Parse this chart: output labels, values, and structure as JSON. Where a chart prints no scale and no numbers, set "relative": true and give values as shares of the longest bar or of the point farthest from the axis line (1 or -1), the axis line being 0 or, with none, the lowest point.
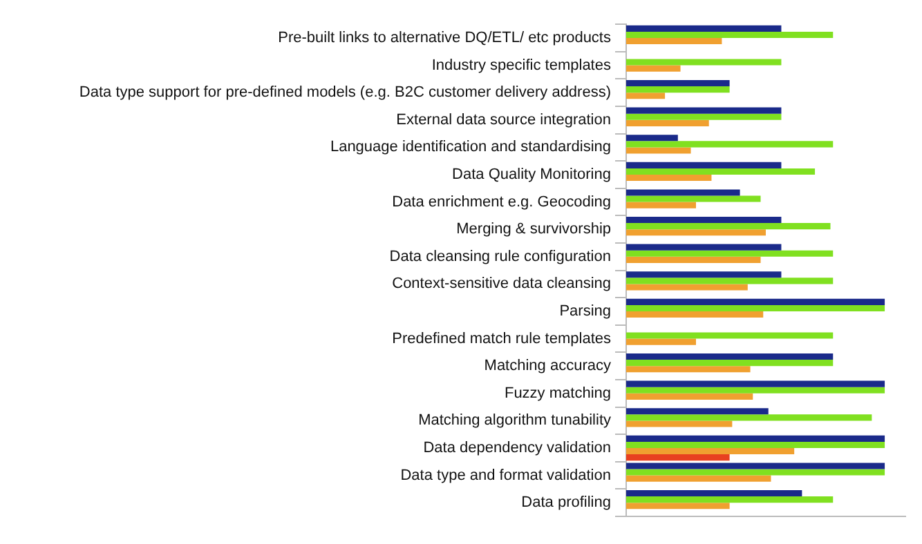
{
  "chart_data": {
    "type": "bar",
    "orientation": "horizontal",
    "relative": true,
    "categories": [
      "Pre-built links to alternative DQ/ETL/ etc products",
      "Industry specific templates",
      "Data type support for pre-defined models (e.g. B2C customer delivery address)",
      "External data source integration",
      "Language identification and standardising",
      "Data Quality Monitoring",
      "Data enrichment e.g. Geocoding",
      "Merging & survivorship",
      "Data cleansing rule configuration",
      "Context-sensitive data cleansing",
      "Parsing",
      "Predefined match rule templates",
      "Matching accuracy",
      "Fuzzy matching",
      "Matching algorithm tunability",
      "Data dependency validation",
      "Data type and format validation",
      "Data profiling"
    ],
    "series": [
      {
        "color": "#1a2a8a",
        "values": [
          0.6,
          null,
          0.4,
          0.6,
          0.2,
          0.6,
          0.44,
          0.6,
          0.6,
          0.6,
          1,
          null,
          0.8,
          1,
          0.55,
          1,
          1,
          0.68
        ]
      },
      {
        "color": "#80e020",
        "values": [
          0.8,
          0.6,
          0.4,
          0.6,
          0.8,
          0.73,
          0.52,
          0.79,
          0.8,
          0.8,
          1,
          0.8,
          0.8,
          1,
          0.95,
          1,
          1,
          0.8
        ]
      },
      {
        "color": "#f0a030",
        "values": [
          0.37,
          0.21,
          0.15,
          0.32,
          0.25,
          0.33,
          0.27,
          0.54,
          0.52,
          0.47,
          0.53,
          0.27,
          0.48,
          0.49,
          0.41,
          0.65,
          0.56,
          0.4
        ]
      },
      {
        "color": "#e84020",
        "values": [
          null,
          null,
          null,
          null,
          null,
          null,
          null,
          null,
          null,
          null,
          null,
          null,
          null,
          null,
          null,
          0.4,
          null,
          null
        ]
      }
    ]
  }
}
